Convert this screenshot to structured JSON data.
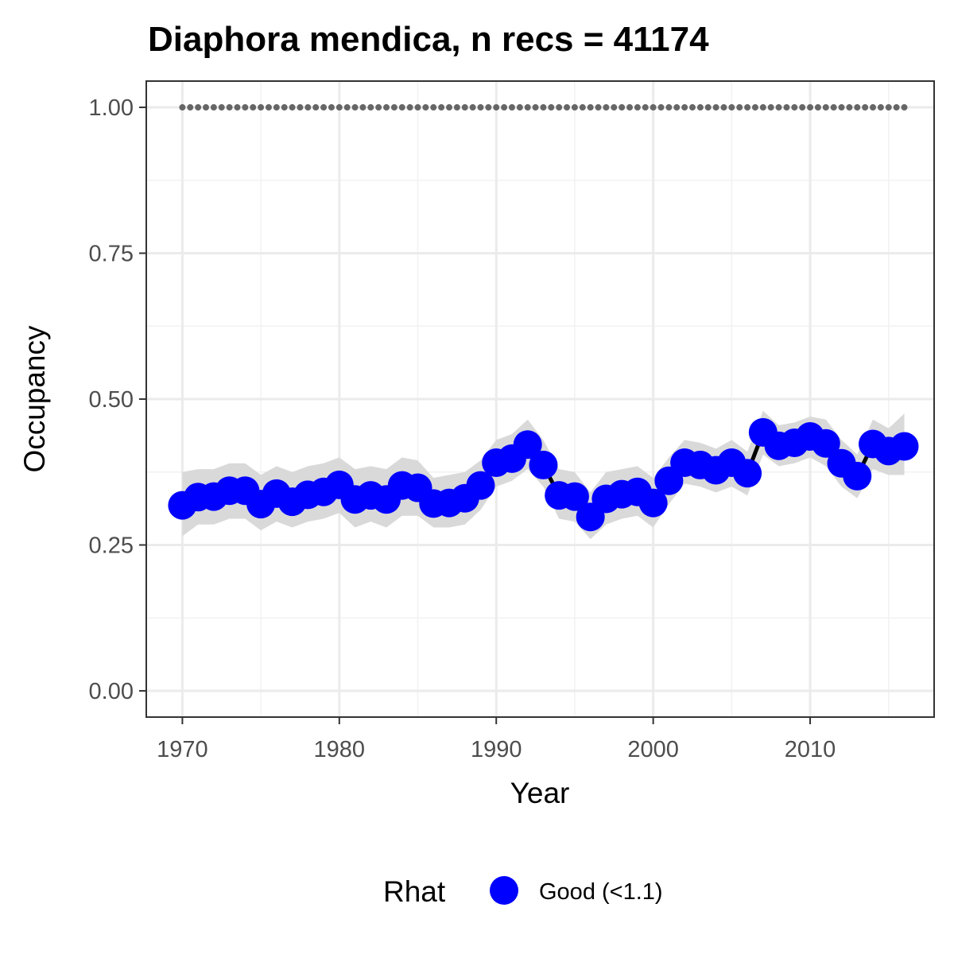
{
  "chart_data": {
    "type": "line",
    "title": "Diaphora mendica, n recs = 41174",
    "xlabel": "Year",
    "ylabel": "Occupancy",
    "xlim": [
      1967.7,
      2017.9
    ],
    "ylim": [
      -0.045,
      1.045
    ],
    "x_ticks": [
      1970,
      1980,
      1990,
      2000,
      2010
    ],
    "x_tick_labels": [
      "1970",
      "1980",
      "1990",
      "2000",
      "2010"
    ],
    "y_ticks": [
      0,
      0.25,
      0.5,
      0.75,
      1.0
    ],
    "y_tick_labels": [
      "0.00",
      "0.25",
      "0.50",
      "0.75",
      "1.00"
    ],
    "grid": true,
    "x": [
      1970,
      1971,
      1972,
      1973,
      1974,
      1975,
      1976,
      1977,
      1978,
      1979,
      1980,
      1981,
      1982,
      1983,
      1984,
      1985,
      1986,
      1987,
      1988,
      1989,
      1990,
      1991,
      1992,
      1993,
      1994,
      1995,
      1996,
      1997,
      1998,
      1999,
      2000,
      2001,
      2002,
      2003,
      2004,
      2005,
      2006,
      2007,
      2008,
      2009,
      2010,
      2011,
      2012,
      2013,
      2014,
      2015,
      2016
    ],
    "series": [
      {
        "name": "Good (<1.1)",
        "values": [
          0.318,
          0.332,
          0.333,
          0.343,
          0.343,
          0.32,
          0.338,
          0.324,
          0.336,
          0.341,
          0.353,
          0.328,
          0.335,
          0.328,
          0.352,
          0.348,
          0.321,
          0.322,
          0.33,
          0.352,
          0.391,
          0.398,
          0.422,
          0.387,
          0.335,
          0.333,
          0.298,
          0.329,
          0.337,
          0.341,
          0.322,
          0.36,
          0.391,
          0.387,
          0.378,
          0.391,
          0.373,
          0.443,
          0.42,
          0.425,
          0.436,
          0.424,
          0.39,
          0.368,
          0.423,
          0.411,
          0.419
        ],
        "lower": [
          0.265,
          0.285,
          0.285,
          0.295,
          0.295,
          0.275,
          0.29,
          0.28,
          0.29,
          0.295,
          0.305,
          0.28,
          0.29,
          0.28,
          0.3,
          0.3,
          0.28,
          0.28,
          0.285,
          0.31,
          0.35,
          0.36,
          0.38,
          0.35,
          0.295,
          0.29,
          0.26,
          0.285,
          0.295,
          0.3,
          0.28,
          0.32,
          0.355,
          0.35,
          0.34,
          0.35,
          0.335,
          0.405,
          0.385,
          0.39,
          0.4,
          0.385,
          0.35,
          0.33,
          0.38,
          0.37,
          0.37
        ],
        "upper": [
          0.375,
          0.38,
          0.38,
          0.39,
          0.39,
          0.37,
          0.385,
          0.375,
          0.385,
          0.39,
          0.4,
          0.38,
          0.385,
          0.38,
          0.4,
          0.395,
          0.365,
          0.37,
          0.375,
          0.395,
          0.43,
          0.44,
          0.465,
          0.43,
          0.38,
          0.375,
          0.34,
          0.375,
          0.38,
          0.385,
          0.365,
          0.4,
          0.43,
          0.425,
          0.415,
          0.43,
          0.41,
          0.48,
          0.455,
          0.46,
          0.47,
          0.465,
          0.43,
          0.405,
          0.465,
          0.45,
          0.475
        ],
        "color": "#0000ff"
      }
    ],
    "reference_line": {
      "y": 1.0,
      "style": "dotted",
      "color": "#666666"
    },
    "line_color": "#000000",
    "ribbon_color": "#d9d9d9",
    "legend": {
      "title": "Rhat",
      "placement": "bottom",
      "entries": [
        {
          "label": "Good (<1.1)",
          "color": "#0000ff"
        }
      ]
    }
  }
}
